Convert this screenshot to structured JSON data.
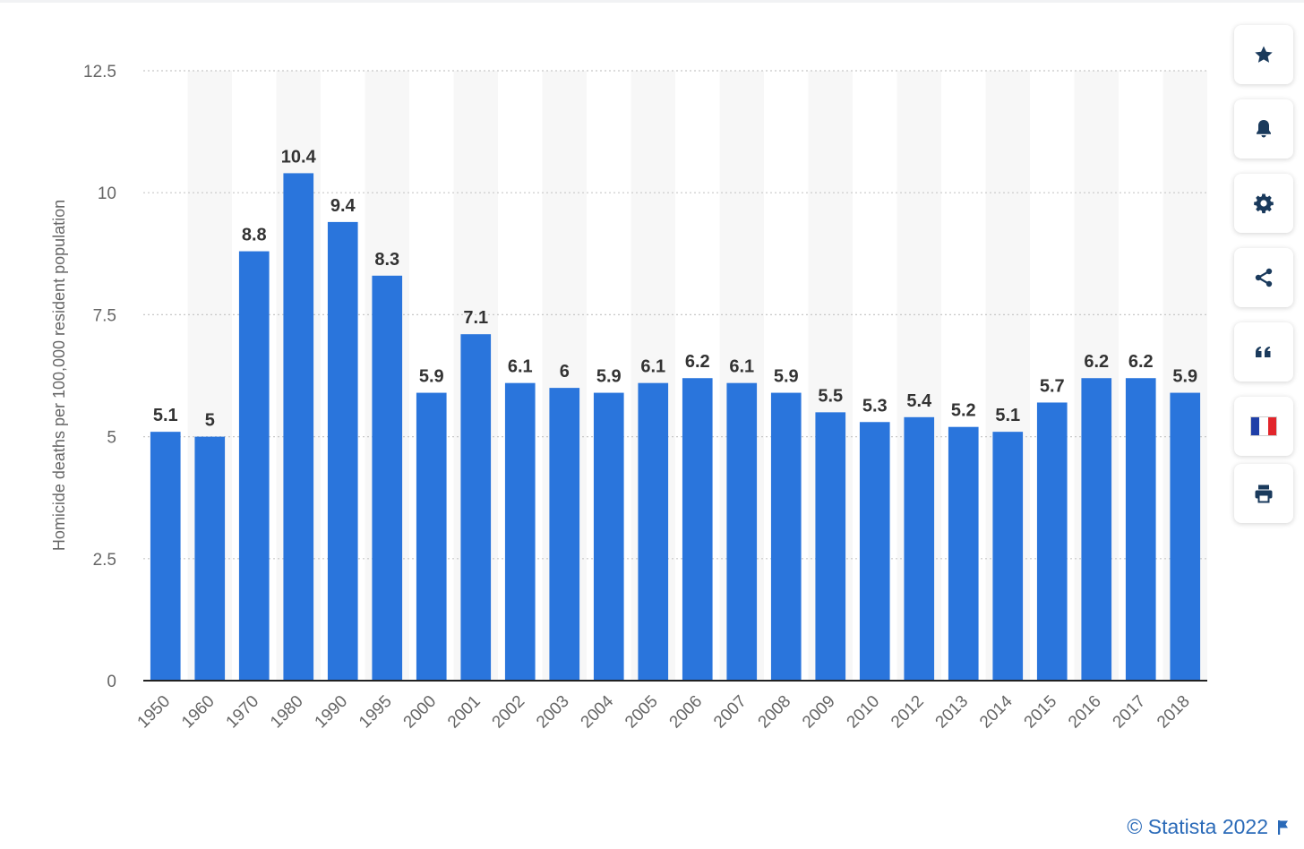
{
  "chart_data": {
    "type": "bar",
    "ylabel": "Homicide deaths per 100,000 resident population",
    "xlabel": "",
    "ylim": [
      0,
      12.5
    ],
    "yticks": [
      0,
      2.5,
      5,
      7.5,
      10,
      12.5
    ],
    "ytick_labels": [
      "0",
      "2.5",
      "5",
      "7.5",
      "10",
      "12.5"
    ],
    "grid": true,
    "categories": [
      "1950",
      "1960",
      "1970",
      "1980",
      "1990",
      "1995",
      "2000",
      "2001",
      "2002",
      "2003",
      "2004",
      "2005",
      "2006",
      "2007",
      "2008",
      "2009",
      "2010",
      "2012",
      "2013",
      "2014",
      "2015",
      "2016",
      "2017",
      "2018"
    ],
    "values": [
      5.1,
      5,
      8.8,
      10.4,
      9.4,
      8.3,
      5.9,
      7.1,
      6.1,
      6,
      5.9,
      6.1,
      6.2,
      6.1,
      5.9,
      5.5,
      5.3,
      5.4,
      5.2,
      5.1,
      5.7,
      6.2,
      6.2,
      5.9
    ],
    "value_labels": [
      "5.1",
      "5",
      "8.8",
      "10.4",
      "9.4",
      "8.3",
      "5.9",
      "7.1",
      "6.1",
      "6",
      "5.9",
      "6.1",
      "6.2",
      "6.1",
      "5.9",
      "5.5",
      "5.3",
      "5.4",
      "5.2",
      "5.1",
      "5.7",
      "6.2",
      "6.2",
      "5.9"
    ],
    "colors": {
      "bar": "#2a75dc",
      "band": "#f7f7f7",
      "grid": "#c8c8c8",
      "axis": "#222222",
      "tick_text": "#666666",
      "value_text": "#333333"
    }
  },
  "sidebar": {
    "buttons": [
      {
        "icon": "star-icon"
      },
      {
        "icon": "bell-icon"
      },
      {
        "icon": "gear-icon"
      },
      {
        "icon": "share-icon"
      },
      {
        "icon": "quote-icon"
      },
      {
        "icon": "french-flag-icon"
      },
      {
        "icon": "print-icon"
      }
    ],
    "icon_color": "#1a3a5c"
  },
  "footer": {
    "credit": "© Statista 2022",
    "credit_color": "#2a6ab8"
  }
}
